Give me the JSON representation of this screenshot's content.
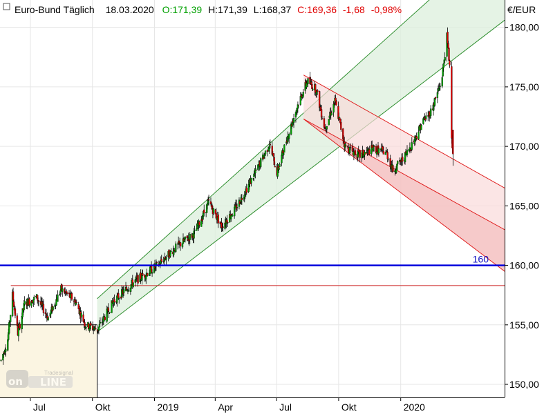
{
  "header": {
    "instrument": "Euro-Bund Täglich",
    "date": "18.03.2020",
    "open": "O:171,39",
    "high": "H:171,39",
    "low": "L:168,37",
    "close": "C:169,36",
    "change": "-1,68",
    "change_pct": "-0,98%"
  },
  "colors": {
    "up": "#00a000",
    "down": "#e00000",
    "channel_green": "#2f8f2f",
    "channel_red": "#e02020",
    "level_line": "#0000dd"
  },
  "logo": {
    "text": "Tradesignal online"
  },
  "chart_data": {
    "type": "candlestick",
    "title": "Euro-Bund Täglich",
    "unit": "€/EUR",
    "ylim": [
      148.9,
      182.3
    ],
    "y_ticks": [
      "180,00",
      "175,00",
      "170,00",
      "165,00",
      "160,00",
      "155,00",
      "150,00"
    ],
    "y_tick_values": [
      180,
      175,
      170,
      165,
      160,
      155,
      150
    ],
    "x_ticks": [
      "Jul",
      "Okt",
      "2019",
      "Apr",
      "Jul",
      "Okt",
      "2020"
    ],
    "x_tick_dates": [
      "2018-07",
      "2018-10",
      "2019-01",
      "2019-04",
      "2019-07",
      "2019-10",
      "2020-01"
    ],
    "x_range": [
      "2018-05-17",
      "2020-06-03"
    ],
    "grid": true,
    "price_path": [
      [
        "2018-05-18",
        152.0
      ],
      [
        "2018-05-28",
        153.8
      ],
      [
        "2018-06-04",
        157.5
      ],
      [
        "2018-06-12",
        154.3
      ],
      [
        "2018-06-22",
        156.8
      ],
      [
        "2018-07-10",
        157.3
      ],
      [
        "2018-07-27",
        155.6
      ],
      [
        "2018-08-15",
        158.0
      ],
      [
        "2018-09-05",
        157.0
      ],
      [
        "2018-09-20",
        155.0
      ],
      [
        "2018-10-08",
        154.6
      ],
      [
        "2018-11-01",
        157.0
      ],
      [
        "2018-12-01",
        158.6
      ],
      [
        "2019-01-05",
        160.0
      ],
      [
        "2019-02-01",
        161.5
      ],
      [
        "2019-03-01",
        162.7
      ],
      [
        "2019-03-22",
        165.3
      ],
      [
        "2019-04-10",
        163.3
      ],
      [
        "2019-05-01",
        164.8
      ],
      [
        "2019-06-01",
        168.0
      ],
      [
        "2019-06-20",
        170.2
      ],
      [
        "2019-07-01",
        167.8
      ],
      [
        "2019-07-15",
        170.5
      ],
      [
        "2019-08-01",
        173.5
      ],
      [
        "2019-08-15",
        175.5
      ],
      [
        "2019-08-28",
        174.8
      ],
      [
        "2019-09-10",
        171.5
      ],
      [
        "2019-09-25",
        173.8
      ],
      [
        "2019-10-10",
        170.0
      ],
      [
        "2019-11-01",
        169.2
      ],
      [
        "2019-11-20",
        169.8
      ],
      [
        "2019-12-10",
        169.5
      ],
      [
        "2019-12-20",
        168.0
      ],
      [
        "2020-01-05",
        169.0
      ],
      [
        "2020-01-20",
        170.5
      ],
      [
        "2020-02-01",
        172.0
      ],
      [
        "2020-02-15",
        173.0
      ],
      [
        "2020-03-01",
        175.5
      ],
      [
        "2020-03-09",
        179.2
      ],
      [
        "2020-03-13",
        176.8
      ],
      [
        "2020-03-16",
        171.0
      ],
      [
        "2020-03-18",
        169.36
      ]
    ],
    "last_bar": {
      "date": "2020-03-18",
      "open": 171.39,
      "high": 171.39,
      "low": 168.37,
      "close": 169.36,
      "change": -1.68,
      "change_pct": -0.98
    },
    "level_line": {
      "value": 160,
      "label": "160"
    },
    "resistance_line": {
      "value": 158.3,
      "from": "2018-06-02"
    },
    "consolidation_box": {
      "from": "2018-05-17",
      "to": "2018-10-08",
      "top": 155.0
    },
    "uptrend_channel": {
      "lower": [
        [
          "2018-10-08",
          154.4
        ],
        [
          "2020-06-03",
          180.6
        ]
      ],
      "upper": [
        [
          "2018-10-08",
          157.2
        ],
        [
          "2020-06-03",
          188.0
        ]
      ]
    },
    "downtrend_channel": {
      "upper": [
        [
          "2019-08-10",
          176.0
        ],
        [
          "2020-06-03",
          166.5
        ]
      ],
      "mid": [
        [
          "2019-08-10",
          172.3
        ],
        [
          "2020-06-03",
          163.0
        ]
      ],
      "lower": [
        [
          "2019-08-10",
          172.3
        ],
        [
          "2020-06-03",
          159.5
        ]
      ]
    }
  }
}
